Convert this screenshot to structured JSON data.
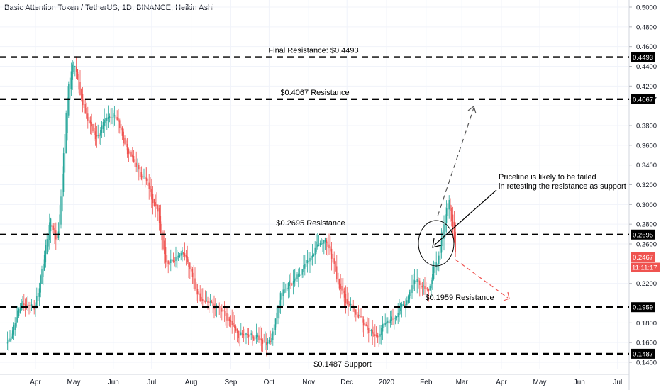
{
  "chart_data": {
    "type": "candlestick",
    "title": "Basic Attention Token / TetherUS, 1D, BINANCE, Heikin Ashi",
    "ylim": [
      0.13,
      0.51
    ],
    "y_ticks": [
      "0.5000",
      "0.4800",
      "0.4600",
      "0.4400",
      "0.4200",
      "0.4067",
      "0.3800",
      "0.3600",
      "0.3400",
      "0.3200",
      "0.3000",
      "0.2800",
      "0.2600",
      "0.2200",
      "0.1800",
      "0.1600",
      "0.1400"
    ],
    "x_ticks": [
      "Apr",
      "May",
      "Jun",
      "Jul",
      "Aug",
      "Sep",
      "Oct",
      "Nov",
      "Dec",
      "2020",
      "Feb",
      "Mar",
      "Apr",
      "May",
      "Jun",
      "Jul"
    ],
    "colors": {
      "up": "#26a69a",
      "down": "#ef5350",
      "grid": "#f0f3fa",
      "price_line": "#ef5350"
    },
    "price_path": [
      [
        "Mar 10",
        0.16
      ],
      [
        "Mar 20",
        0.2
      ],
      [
        "Apr 1",
        0.198
      ],
      [
        "Apr 12",
        0.285
      ],
      [
        "Apr 18",
        0.262
      ],
      [
        "Apr 26",
        0.42
      ],
      [
        "May 1",
        0.448
      ],
      [
        "May 8",
        0.395
      ],
      [
        "May 18",
        0.368
      ],
      [
        "Jun 1",
        0.395
      ],
      [
        "Jun 12",
        0.352
      ],
      [
        "Jun 25",
        0.325
      ],
      [
        "Jul 4",
        0.3
      ],
      [
        "Jul 12",
        0.24
      ],
      [
        "Jul 25",
        0.255
      ],
      [
        "Aug 5",
        0.21
      ],
      [
        "Aug 25",
        0.19
      ],
      [
        "Sep 5",
        0.168
      ],
      [
        "Sep 20",
        0.165
      ],
      [
        "Oct 1",
        0.16
      ],
      [
        "Oct 10",
        0.21
      ],
      [
        "Oct 28",
        0.238
      ],
      [
        "Nov 7",
        0.26
      ],
      [
        "Nov 14",
        0.265
      ],
      [
        "Nov 18",
        0.245
      ],
      [
        "Nov 28",
        0.205
      ],
      [
        "Dec 10",
        0.185
      ],
      [
        "Dec 22",
        0.165
      ],
      [
        "Jan 1",
        0.18
      ],
      [
        "Jan 15",
        0.2
      ],
      [
        "Jan 22",
        0.225
      ],
      [
        "Feb 2",
        0.215
      ],
      [
        "Feb 12",
        0.255
      ],
      [
        "Feb 18",
        0.31
      ],
      [
        "Feb 22",
        0.27
      ],
      [
        "Feb 24",
        0.2467
      ]
    ],
    "last_price": {
      "value": 0.2467,
      "label": "0.2467",
      "countdown": "11:11:17"
    },
    "levels": [
      {
        "value": 0.4493,
        "tag": "0.4493",
        "text": "Final Resistance: $0.4493"
      },
      {
        "value": 0.4067,
        "tag": "0.4067",
        "text": "$0.4067 Resistance"
      },
      {
        "value": 0.2695,
        "tag": "0.2695",
        "text": "$0.2695 Resistance"
      },
      {
        "value": 0.1959,
        "tag": "0.1959",
        "text": "$0.1959 Resistance"
      },
      {
        "value": 0.1487,
        "tag": "0.1487",
        "text": "$0.1487 Support"
      }
    ],
    "annotation": {
      "line1": "Priceline is likely to be failed",
      "line2": "in retesting the resistance as support"
    }
  }
}
